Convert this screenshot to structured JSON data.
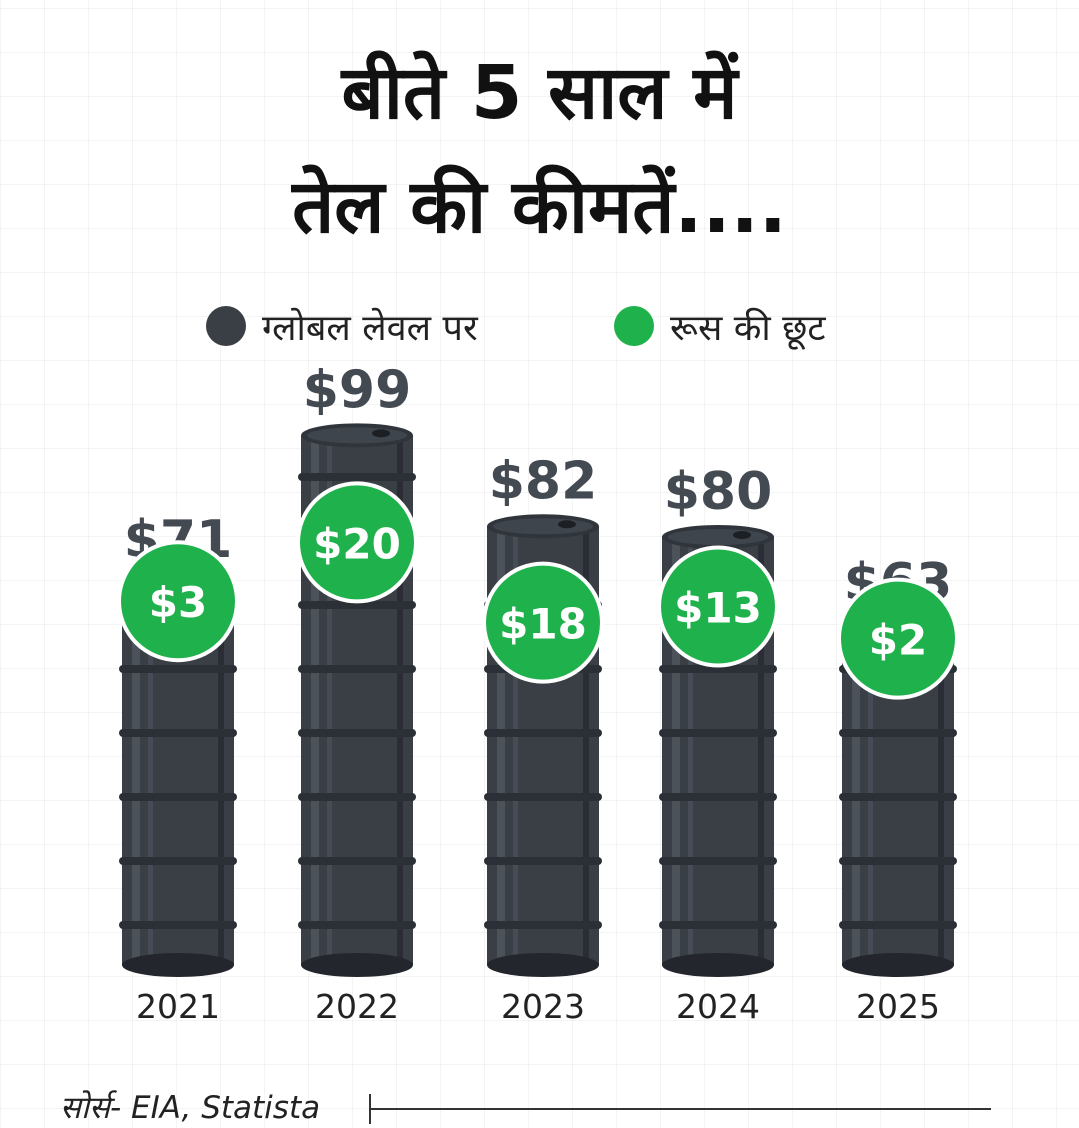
{
  "title": {
    "line1": "बीते 5 साल में",
    "line2": "तेल की कीमतें...."
  },
  "legend": [
    {
      "label": "ग्लोबल लेवल पर",
      "color": "#3a3f46"
    },
    {
      "label": "रूस की छूट",
      "color": "#1fb24c"
    }
  ],
  "source": "सोर्स- EIA, Statista",
  "chart_data": {
    "type": "bar",
    "categories": [
      "2021",
      "2022",
      "2023",
      "2024",
      "2025"
    ],
    "series": [
      {
        "name": "ग्लोबल लेवल पर",
        "values": [
          71,
          99,
          82,
          80,
          63
        ],
        "labels": [
          "$71",
          "$99",
          "$82",
          "$80",
          "$63"
        ],
        "color": "#3a3f46"
      },
      {
        "name": "रूस की छूट",
        "values": [
          3,
          20,
          18,
          13,
          2
        ],
        "labels": [
          "$3",
          "$20",
          "$18",
          "$13",
          "$2"
        ],
        "color": "#1fb24c"
      }
    ],
    "ylim": [
      0,
      100
    ],
    "grid": true,
    "legend_position": "top"
  }
}
